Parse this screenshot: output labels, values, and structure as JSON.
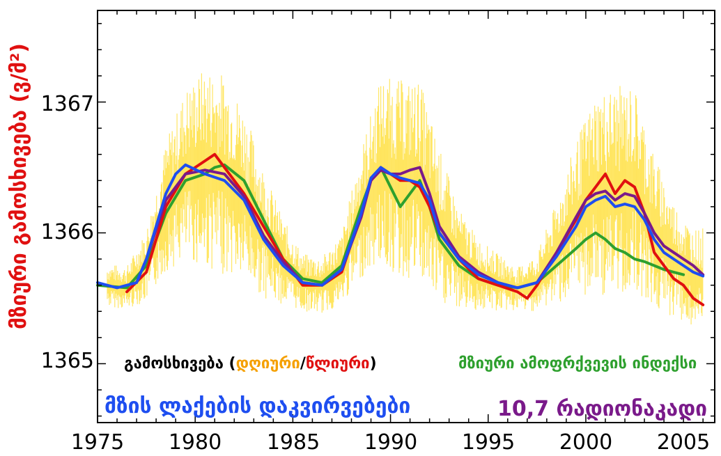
{
  "colors": {
    "tsi_daily": "#ffe24a",
    "red": "#e01010",
    "green": "#2ea02e",
    "blue": "#1e4ef0",
    "purple": "#7a1a8a",
    "orange": "#f5a000"
  },
  "chart_data": {
    "type": "line",
    "title": "",
    "ylabel": "მზიური გამოსხივება (ვ/მ²)",
    "xlabel": "",
    "xlim": [
      1975,
      2006.6
    ],
    "ylim": [
      1364.55,
      1367.7
    ],
    "x_ticks": [
      "1975",
      "1980",
      "1985",
      "1990",
      "1995",
      "2000",
      "2005"
    ],
    "y_ticks": [
      "1365",
      "1366",
      "1367"
    ],
    "legend": {
      "irradiance_label": "გამოსხივება",
      "paren_open": " (",
      "daily": "დღიური",
      "slash": "/",
      "yearly": "წლიური",
      "paren_close": ")",
      "uv_index": "მზიური ამოფრქვევის ინდექსი",
      "sunspots": "მზის ლაქების დაკვირვებები",
      "radio": "10,7 რადიონაკადი"
    },
    "series": [
      {
        "name": "წლიური",
        "color": "red",
        "x": [
          1976.5,
          1977.5,
          1978.5,
          1979.5,
          1980.5,
          1981.0,
          1981.5,
          1982.5,
          1983.5,
          1984.5,
          1985.5,
          1986.5,
          1987.5,
          1988.5,
          1989.0,
          1989.5,
          1990.0,
          1990.5,
          1991.0,
          1991.5,
          1992.0,
          1992.5,
          1993.5,
          1994.5,
          1995.5,
          1996.5,
          1997.0,
          1997.5,
          1998.5,
          1999.5,
          2000.0,
          2000.5,
          2001.0,
          2001.5,
          2002.0,
          2002.5,
          2003.0,
          2003.5,
          2004.0,
          2004.5,
          2005.0,
          2005.5,
          2006.0
        ],
        "y": [
          1365.55,
          1365.7,
          1366.2,
          1366.45,
          1366.55,
          1366.6,
          1366.5,
          1366.3,
          1366.05,
          1365.8,
          1365.6,
          1365.6,
          1365.7,
          1366.15,
          1366.4,
          1366.5,
          1366.45,
          1366.4,
          1366.4,
          1366.35,
          1366.2,
          1366.0,
          1365.8,
          1365.65,
          1365.6,
          1365.55,
          1365.5,
          1365.6,
          1365.85,
          1366.1,
          1366.25,
          1366.35,
          1366.45,
          1366.3,
          1366.4,
          1366.35,
          1366.15,
          1365.85,
          1365.75,
          1365.65,
          1365.6,
          1365.5,
          1365.45
        ]
      },
      {
        "name": "მზიური ამოფრქვევის ინდექსი",
        "color": "green",
        "x": [
          1975.0,
          1976.5,
          1977.5,
          1978.5,
          1979.5,
          1980.5,
          1981.0,
          1981.5,
          1982.5,
          1983.5,
          1984.5,
          1985.5,
          1986.5,
          1987.5,
          1988.5,
          1989.0,
          1989.5,
          1990.0,
          1990.5,
          1991.0,
          1991.5,
          1992.0,
          1992.5,
          1993.5,
          1994.5,
          1995.5,
          1996.5,
          1997.5,
          1998.5,
          1999.5,
          2000.0,
          2000.5,
          2001.0,
          2001.5,
          2002.0,
          2002.5,
          2003.0,
          2003.5,
          2004.0,
          2004.5,
          2005.0
        ],
        "y": [
          1365.6,
          1365.58,
          1365.75,
          1366.15,
          1366.4,
          1366.45,
          1366.5,
          1366.52,
          1366.4,
          1366.1,
          1365.8,
          1365.65,
          1365.62,
          1365.75,
          1366.2,
          1366.4,
          1366.5,
          1366.35,
          1366.2,
          1366.3,
          1366.4,
          1366.2,
          1365.95,
          1365.75,
          1365.65,
          1365.6,
          1365.58,
          1365.62,
          1365.75,
          1365.88,
          1365.95,
          1366.0,
          1365.95,
          1365.88,
          1365.85,
          1365.8,
          1365.78,
          1365.75,
          1365.72,
          1365.7,
          1365.68
        ]
      },
      {
        "name": "მზის ლაქების დაკვირვებები",
        "color": "blue",
        "x": [
          1975.0,
          1976.0,
          1977.0,
          1977.5,
          1978.5,
          1979.0,
          1979.5,
          1980.5,
          1981.5,
          1982.5,
          1983.5,
          1984.5,
          1985.5,
          1986.5,
          1987.5,
          1988.5,
          1989.0,
          1989.5,
          1990.0,
          1990.5,
          1991.0,
          1991.5,
          1992.0,
          1992.5,
          1993.5,
          1994.5,
          1995.5,
          1996.5,
          1997.5,
          1998.5,
          1999.5,
          2000.0,
          2000.5,
          2001.0,
          2001.5,
          2002.0,
          2002.5,
          2003.0,
          2003.5,
          2004.0,
          2004.5,
          2005.0,
          2005.5,
          2006.0
        ],
        "y": [
          1365.62,
          1365.58,
          1365.62,
          1365.8,
          1366.3,
          1366.45,
          1366.52,
          1366.45,
          1366.4,
          1366.25,
          1365.95,
          1365.75,
          1365.62,
          1365.6,
          1365.72,
          1366.15,
          1366.42,
          1366.5,
          1366.45,
          1366.42,
          1366.4,
          1366.38,
          1366.25,
          1366.0,
          1365.8,
          1365.68,
          1365.62,
          1365.58,
          1365.62,
          1365.82,
          1366.05,
          1366.2,
          1366.25,
          1366.28,
          1366.2,
          1366.22,
          1366.2,
          1366.1,
          1365.95,
          1365.85,
          1365.8,
          1365.75,
          1365.7,
          1365.67
        ]
      },
      {
        "name": "10,7 რადიონაკადი",
        "color": "purple",
        "x": [
          1977.0,
          1977.5,
          1978.5,
          1979.5,
          1980.5,
          1981.5,
          1982.5,
          1983.5,
          1984.5,
          1985.5,
          1986.5,
          1987.5,
          1988.5,
          1989.0,
          1989.5,
          1990.0,
          1990.5,
          1991.0,
          1991.5,
          1992.0,
          1992.5,
          1993.5,
          1994.5,
          1995.5,
          1996.5,
          1997.5,
          1998.5,
          1999.5,
          2000.0,
          2000.5,
          2001.0,
          2001.5,
          2002.0,
          2002.5,
          2003.0,
          2003.5,
          2004.0,
          2004.5,
          2005.0,
          2005.5,
          2006.0
        ],
        "y": [
          1365.62,
          1365.8,
          1366.25,
          1366.45,
          1366.48,
          1366.45,
          1366.28,
          1365.98,
          1365.78,
          1365.62,
          1365.6,
          1365.72,
          1366.12,
          1366.4,
          1366.48,
          1366.45,
          1366.45,
          1366.48,
          1366.5,
          1366.3,
          1366.05,
          1365.82,
          1365.7,
          1365.62,
          1365.58,
          1365.62,
          1365.85,
          1366.12,
          1366.25,
          1366.3,
          1366.32,
          1366.25,
          1366.3,
          1366.28,
          1366.15,
          1366.0,
          1365.9,
          1365.85,
          1365.8,
          1365.75,
          1365.68
        ]
      },
      {
        "name": "დღიური",
        "color": "tsi_daily",
        "x": [
          1975.5,
          1976.5,
          1977.5,
          1978.5,
          1979.5,
          1980.5,
          1981.5,
          1982.5,
          1983.5,
          1984.5,
          1985.5,
          1986.5,
          1987.5,
          1988.5,
          1989.5,
          1990.5,
          1991.5,
          1992.5,
          1993.5,
          1994.5,
          1995.5,
          1996.5,
          1997.5,
          1998.5,
          1999.5,
          2000.5,
          2001.5,
          2002.5,
          2003.5,
          2004.5,
          2005.5
        ],
        "y": [
          1365.6,
          1365.58,
          1365.75,
          1366.2,
          1366.45,
          1366.5,
          1366.45,
          1366.3,
          1366.0,
          1365.78,
          1365.62,
          1365.6,
          1365.72,
          1366.15,
          1366.48,
          1366.4,
          1366.4,
          1366.05,
          1365.8,
          1365.68,
          1365.62,
          1365.57,
          1365.62,
          1365.85,
          1366.1,
          1366.3,
          1366.3,
          1366.35,
          1366.0,
          1365.8,
          1365.65
        ],
        "amplitude": [
          0.15,
          0.15,
          0.25,
          0.45,
          0.6,
          0.7,
          0.7,
          0.6,
          0.45,
          0.3,
          0.2,
          0.2,
          0.25,
          0.45,
          0.65,
          0.7,
          0.7,
          0.55,
          0.35,
          0.25,
          0.2,
          0.15,
          0.2,
          0.35,
          0.55,
          0.7,
          0.75,
          0.7,
          0.55,
          0.4,
          0.35
        ]
      }
    ]
  }
}
